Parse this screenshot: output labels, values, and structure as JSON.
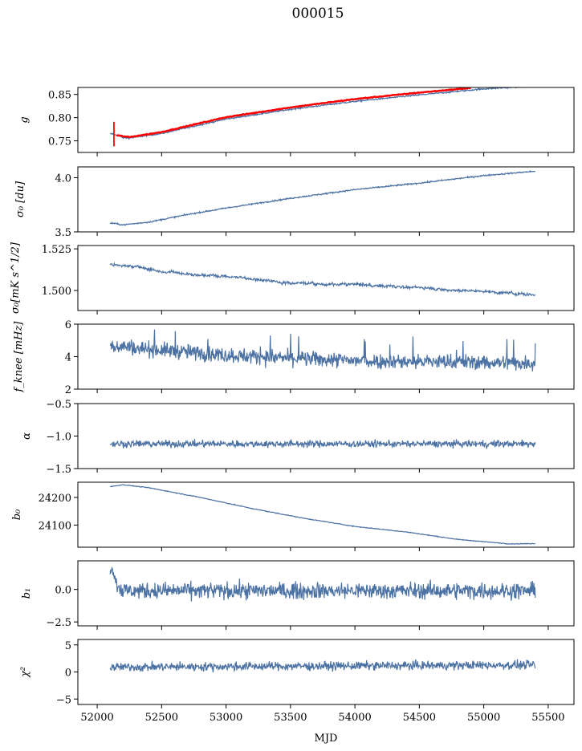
{
  "title": "000015",
  "xlabel": "MJD",
  "colors": {
    "series": "#4c72a4",
    "fit": "#ff0000",
    "frame": "#000000"
  },
  "chart_data": {
    "type": "line",
    "x_range": [
      52100,
      55400
    ],
    "xlim": [
      51850,
      55700
    ],
    "xticks": [
      52000,
      52500,
      53000,
      53500,
      54000,
      54500,
      55000,
      55500
    ],
    "xtick_labels": [
      "52000",
      "52500",
      "53000",
      "53500",
      "54000",
      "54500",
      "55000",
      "55500"
    ],
    "panels": [
      {
        "ylabel": "g",
        "ylim": [
          0.725,
          0.865
        ],
        "yticks": [
          0.75,
          0.8,
          0.85
        ],
        "ytick_labels": [
          "0.75",
          "0.80",
          "0.85"
        ],
        "series_points": [
          [
            52120,
            0.765
          ],
          [
            52200,
            0.757
          ],
          [
            52250,
            0.756
          ],
          [
            52500,
            0.766
          ],
          [
            53000,
            0.797
          ],
          [
            53500,
            0.818
          ],
          [
            54000,
            0.835
          ],
          [
            54500,
            0.849
          ],
          [
            55000,
            0.862
          ],
          [
            55400,
            0.868
          ]
        ],
        "fit_points": [
          [
            52150,
            0.762
          ],
          [
            52250,
            0.758
          ],
          [
            52500,
            0.769
          ],
          [
            53000,
            0.801
          ],
          [
            53500,
            0.822
          ],
          [
            54000,
            0.84
          ],
          [
            54500,
            0.854
          ],
          [
            54900,
            0.864
          ]
        ],
        "noise": 0.0015
      },
      {
        "ylabel": "σ₀ [du]",
        "ylim": [
          3.5,
          4.1
        ],
        "yticks": [
          3.5,
          4.0
        ],
        "ytick_labels": [
          "3.5",
          "4.0"
        ],
        "series_points": [
          [
            52120,
            3.58
          ],
          [
            52200,
            3.565
          ],
          [
            52400,
            3.59
          ],
          [
            52700,
            3.66
          ],
          [
            53000,
            3.72
          ],
          [
            53500,
            3.81
          ],
          [
            54000,
            3.89
          ],
          [
            54500,
            3.95
          ],
          [
            55000,
            4.02
          ],
          [
            55400,
            4.06
          ]
        ],
        "noise": 0.006
      },
      {
        "ylabel": "σ₀[mK s^1/2]",
        "ylim": [
          1.488,
          1.527
        ],
        "yticks": [
          1.5,
          1.525
        ],
        "ytick_labels": [
          "1.500",
          "1.525"
        ],
        "series_points": [
          [
            52120,
            1.5155
          ],
          [
            52300,
            1.5145
          ],
          [
            52500,
            1.5115
          ],
          [
            53000,
            1.509
          ],
          [
            53500,
            1.5055
          ],
          [
            54000,
            1.5035
          ],
          [
            54500,
            1.502
          ],
          [
            55000,
            1.5
          ],
          [
            55400,
            1.498
          ]
        ],
        "noise": 0.0008,
        "wander": 0.0015
      },
      {
        "ylabel": "f_knee [mHz]",
        "ylim": [
          2,
          6
        ],
        "yticks": [
          2,
          4,
          6
        ],
        "ytick_labels": [
          "2",
          "4",
          "6"
        ],
        "series_points": [
          [
            52120,
            4.7
          ],
          [
            52500,
            4.4
          ],
          [
            53000,
            4.1
          ],
          [
            53500,
            3.9
          ],
          [
            54000,
            3.75
          ],
          [
            55000,
            3.65
          ],
          [
            55400,
            3.6
          ]
        ],
        "noise": 0.45
      },
      {
        "ylabel": "α",
        "ylim": [
          -1.5,
          -0.5
        ],
        "yticks": [
          -1.5,
          -1.0,
          -0.5
        ],
        "ytick_labels": [
          "−1.5",
          "−1.0",
          "−0.5"
        ],
        "series_points": [
          [
            52120,
            -1.12
          ],
          [
            55400,
            -1.12
          ]
        ],
        "noise": 0.05
      },
      {
        "ylabel": "b₀",
        "ylim": [
          24020,
          24255
        ],
        "yticks": [
          24100,
          24200
        ],
        "ytick_labels": [
          "24100",
          "24200"
        ],
        "series_points": [
          [
            52120,
            24240
          ],
          [
            52200,
            24246
          ],
          [
            52400,
            24235
          ],
          [
            52800,
            24200
          ],
          [
            53200,
            24160
          ],
          [
            53600,
            24125
          ],
          [
            54000,
            24095
          ],
          [
            54400,
            24075
          ],
          [
            54800,
            24048
          ],
          [
            55200,
            24032
          ],
          [
            55400,
            24033
          ]
        ],
        "noise": 1.2
      },
      {
        "ylabel": "b₁",
        "ylim": [
          -2.8,
          2.2
        ],
        "yticks": [
          -2.5,
          0.0
        ],
        "ytick_labels": [
          "−2.5",
          "0.0"
        ],
        "series_points": [
          [
            52120,
            1.6
          ],
          [
            52150,
            0.4
          ],
          [
            52200,
            -0.1
          ],
          [
            55400,
            -0.1
          ]
        ],
        "noise": 0.6
      },
      {
        "ylabel": "χ²",
        "ylim": [
          -6,
          6
        ],
        "yticks": [
          -5,
          0,
          5
        ],
        "ytick_labels": [
          "−5",
          "0",
          "5"
        ],
        "series_points": [
          [
            52120,
            0.9
          ],
          [
            55400,
            1.3
          ]
        ],
        "noise": 0.75
      }
    ]
  }
}
